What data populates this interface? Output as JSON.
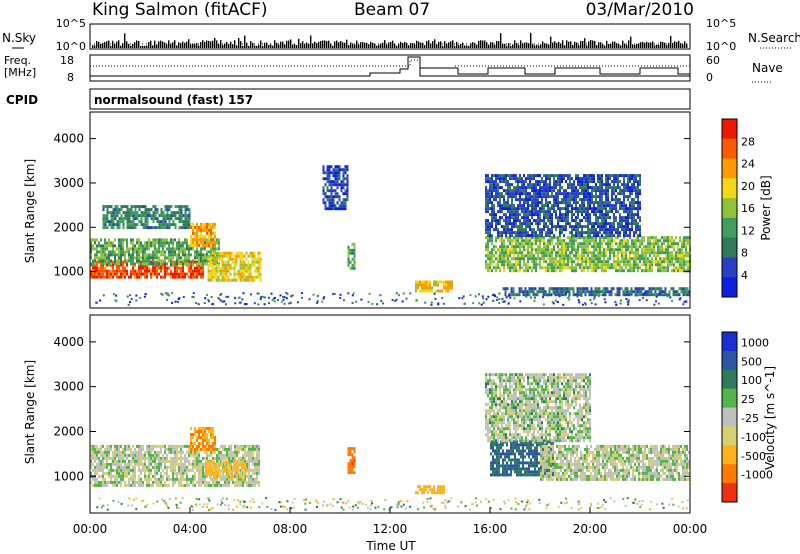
{
  "header": {
    "station": "King Salmon (fitACF)",
    "beam": "Beam 07",
    "date": "03/Mar/2010"
  },
  "aux_panel": {
    "nsky_label": "N.Sky",
    "nsearch_label": "N.Search",
    "nsky_ticks": [
      "10^5",
      "10^0"
    ],
    "nsearch_ticks": [
      "10^5",
      "10^0"
    ],
    "freq_label_top": "Freq.",
    "freq_label_unit": "[MHz]",
    "freq_ticks": [
      "18",
      "8"
    ],
    "nave_label": "Nave",
    "nave_ticks": [
      "60",
      "0"
    ],
    "cpid_label": "CPID",
    "cpid_value": "normalsound (fast) 157"
  },
  "colors": {
    "power": [
      "#0a1fe0",
      "#2a3fc6",
      "#2f7a58",
      "#3f9e5f",
      "#8fc43a",
      "#f2d818",
      "#ff9a00",
      "#ff5a00",
      "#ee1a00"
    ],
    "velocity": [
      "#1a2ed6",
      "#2a56a6",
      "#2f7a58",
      "#52b54a",
      "#bfbfbf",
      "#d7cf70",
      "#ffb21a",
      "#ff7a00",
      "#f03010"
    ]
  },
  "chart_data": [
    {
      "type": "heatmap",
      "panel": "power",
      "xlabel": "",
      "ylabel": "Slant Range [km]",
      "x_range": [
        "00:00",
        "24:00"
      ],
      "ylim": [
        180,
        4600
      ],
      "y_ticks": [
        "4000",
        "3000",
        "2000",
        "1000"
      ],
      "colorbar_label": "Power [dB]",
      "colorbar_ticks": [
        "28",
        "24",
        "20",
        "16",
        "12",
        "8",
        "4"
      ],
      "colorbar_range": [
        0,
        32
      ],
      "regions": [
        {
          "t0": 0.0,
          "t1": 4.5,
          "r0": 850,
          "r1": 1250,
          "value": 28
        },
        {
          "t0": 0.0,
          "t1": 5.2,
          "r0": 1200,
          "r1": 1750,
          "value": 13
        },
        {
          "t0": 0.5,
          "t1": 4.0,
          "r0": 2000,
          "r1": 2500,
          "value": 10
        },
        {
          "t0": 4.0,
          "t1": 5.0,
          "r0": 1600,
          "r1": 2100,
          "value": 22
        },
        {
          "t0": 4.7,
          "t1": 6.8,
          "r0": 800,
          "r1": 1450,
          "value": 20
        },
        {
          "t0": 10.3,
          "t1": 10.6,
          "r0": 1050,
          "r1": 1650,
          "value": 13
        },
        {
          "t0": 13.0,
          "t1": 14.5,
          "r0": 550,
          "r1": 800,
          "value": 21
        },
        {
          "t0": 15.8,
          "t1": 24.0,
          "r0": 1050,
          "r1": 1800,
          "value": 15
        },
        {
          "t0": 15.8,
          "t1": 22.0,
          "r0": 1800,
          "r1": 3200,
          "value": 6
        },
        {
          "t0": 16.5,
          "t1": 24.0,
          "r0": 450,
          "r1": 650,
          "value": 8
        },
        {
          "t0": 9.3,
          "t1": 10.3,
          "r0": 2400,
          "r1": 3400,
          "value": 5
        }
      ]
    },
    {
      "type": "heatmap",
      "panel": "velocity",
      "xlabel": "Time UT",
      "ylabel": "Slant Range [km]",
      "x_ticks": [
        "00:00",
        "04:00",
        "08:00",
        "12:00",
        "16:00",
        "20:00",
        "00:00"
      ],
      "x_range": [
        "00:00",
        "24:00"
      ],
      "ylim": [
        180,
        4600
      ],
      "y_ticks": [
        "4000",
        "3000",
        "2000",
        "1000"
      ],
      "colorbar_label": "Velocity [m s^-1]",
      "colorbar_ticks": [
        "1000",
        "500",
        "100",
        "25",
        "-25",
        "-100",
        "-500",
        "-1000"
      ],
      "regions": [
        {
          "t0": 0.0,
          "t1": 6.8,
          "r0": 800,
          "r1": 1700,
          "value": 0
        },
        {
          "t0": 4.0,
          "t1": 5.0,
          "r0": 1600,
          "r1": 2100,
          "value": -300
        },
        {
          "t0": 4.6,
          "t1": 6.2,
          "r0": 1000,
          "r1": 1350,
          "value": -80
        },
        {
          "t0": 10.3,
          "t1": 10.6,
          "r0": 1050,
          "r1": 1650,
          "value": -700
        },
        {
          "t0": 13.0,
          "t1": 14.2,
          "r0": 600,
          "r1": 800,
          "value": -150
        },
        {
          "t0": 16.0,
          "t1": 18.5,
          "r0": 1000,
          "r1": 1800,
          "value": 300
        },
        {
          "t0": 18.0,
          "t1": 24.0,
          "r0": 900,
          "r1": 1700,
          "value": 0
        },
        {
          "t0": 15.8,
          "t1": 20.0,
          "r0": 1800,
          "r1": 3300,
          "value": 10
        }
      ]
    }
  ]
}
